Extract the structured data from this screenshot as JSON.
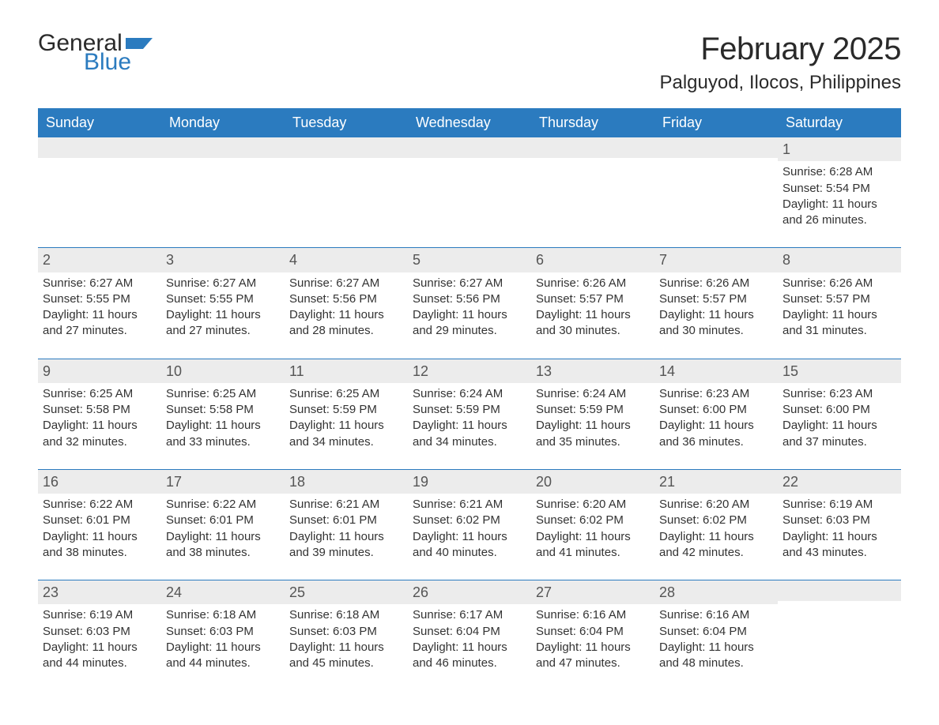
{
  "logo": {
    "text1": "General",
    "text2": "Blue",
    "flag_color": "#2b7bbf"
  },
  "title": "February 2025",
  "location": "Palguyod, Ilocos, Philippines",
  "colors": {
    "header_bg": "#2b7bbf",
    "header_text": "#ffffff",
    "daynum_bg": "#ececec",
    "daynum_text": "#555555",
    "body_text": "#333333",
    "rule": "#2b7bbf"
  },
  "daysOfWeek": [
    "Sunday",
    "Monday",
    "Tuesday",
    "Wednesday",
    "Thursday",
    "Friday",
    "Saturday"
  ],
  "weeks": [
    [
      {
        "n": "",
        "sunrise": "",
        "sunset": "",
        "daylight": ""
      },
      {
        "n": "",
        "sunrise": "",
        "sunset": "",
        "daylight": ""
      },
      {
        "n": "",
        "sunrise": "",
        "sunset": "",
        "daylight": ""
      },
      {
        "n": "",
        "sunrise": "",
        "sunset": "",
        "daylight": ""
      },
      {
        "n": "",
        "sunrise": "",
        "sunset": "",
        "daylight": ""
      },
      {
        "n": "",
        "sunrise": "",
        "sunset": "",
        "daylight": ""
      },
      {
        "n": "1",
        "sunrise": "Sunrise: 6:28 AM",
        "sunset": "Sunset: 5:54 PM",
        "daylight": "Daylight: 11 hours and 26 minutes."
      }
    ],
    [
      {
        "n": "2",
        "sunrise": "Sunrise: 6:27 AM",
        "sunset": "Sunset: 5:55 PM",
        "daylight": "Daylight: 11 hours and 27 minutes."
      },
      {
        "n": "3",
        "sunrise": "Sunrise: 6:27 AM",
        "sunset": "Sunset: 5:55 PM",
        "daylight": "Daylight: 11 hours and 27 minutes."
      },
      {
        "n": "4",
        "sunrise": "Sunrise: 6:27 AM",
        "sunset": "Sunset: 5:56 PM",
        "daylight": "Daylight: 11 hours and 28 minutes."
      },
      {
        "n": "5",
        "sunrise": "Sunrise: 6:27 AM",
        "sunset": "Sunset: 5:56 PM",
        "daylight": "Daylight: 11 hours and 29 minutes."
      },
      {
        "n": "6",
        "sunrise": "Sunrise: 6:26 AM",
        "sunset": "Sunset: 5:57 PM",
        "daylight": "Daylight: 11 hours and 30 minutes."
      },
      {
        "n": "7",
        "sunrise": "Sunrise: 6:26 AM",
        "sunset": "Sunset: 5:57 PM",
        "daylight": "Daylight: 11 hours and 30 minutes."
      },
      {
        "n": "8",
        "sunrise": "Sunrise: 6:26 AM",
        "sunset": "Sunset: 5:57 PM",
        "daylight": "Daylight: 11 hours and 31 minutes."
      }
    ],
    [
      {
        "n": "9",
        "sunrise": "Sunrise: 6:25 AM",
        "sunset": "Sunset: 5:58 PM",
        "daylight": "Daylight: 11 hours and 32 minutes."
      },
      {
        "n": "10",
        "sunrise": "Sunrise: 6:25 AM",
        "sunset": "Sunset: 5:58 PM",
        "daylight": "Daylight: 11 hours and 33 minutes."
      },
      {
        "n": "11",
        "sunrise": "Sunrise: 6:25 AM",
        "sunset": "Sunset: 5:59 PM",
        "daylight": "Daylight: 11 hours and 34 minutes."
      },
      {
        "n": "12",
        "sunrise": "Sunrise: 6:24 AM",
        "sunset": "Sunset: 5:59 PM",
        "daylight": "Daylight: 11 hours and 34 minutes."
      },
      {
        "n": "13",
        "sunrise": "Sunrise: 6:24 AM",
        "sunset": "Sunset: 5:59 PM",
        "daylight": "Daylight: 11 hours and 35 minutes."
      },
      {
        "n": "14",
        "sunrise": "Sunrise: 6:23 AM",
        "sunset": "Sunset: 6:00 PM",
        "daylight": "Daylight: 11 hours and 36 minutes."
      },
      {
        "n": "15",
        "sunrise": "Sunrise: 6:23 AM",
        "sunset": "Sunset: 6:00 PM",
        "daylight": "Daylight: 11 hours and 37 minutes."
      }
    ],
    [
      {
        "n": "16",
        "sunrise": "Sunrise: 6:22 AM",
        "sunset": "Sunset: 6:01 PM",
        "daylight": "Daylight: 11 hours and 38 minutes."
      },
      {
        "n": "17",
        "sunrise": "Sunrise: 6:22 AM",
        "sunset": "Sunset: 6:01 PM",
        "daylight": "Daylight: 11 hours and 38 minutes."
      },
      {
        "n": "18",
        "sunrise": "Sunrise: 6:21 AM",
        "sunset": "Sunset: 6:01 PM",
        "daylight": "Daylight: 11 hours and 39 minutes."
      },
      {
        "n": "19",
        "sunrise": "Sunrise: 6:21 AM",
        "sunset": "Sunset: 6:02 PM",
        "daylight": "Daylight: 11 hours and 40 minutes."
      },
      {
        "n": "20",
        "sunrise": "Sunrise: 6:20 AM",
        "sunset": "Sunset: 6:02 PM",
        "daylight": "Daylight: 11 hours and 41 minutes."
      },
      {
        "n": "21",
        "sunrise": "Sunrise: 6:20 AM",
        "sunset": "Sunset: 6:02 PM",
        "daylight": "Daylight: 11 hours and 42 minutes."
      },
      {
        "n": "22",
        "sunrise": "Sunrise: 6:19 AM",
        "sunset": "Sunset: 6:03 PM",
        "daylight": "Daylight: 11 hours and 43 minutes."
      }
    ],
    [
      {
        "n": "23",
        "sunrise": "Sunrise: 6:19 AM",
        "sunset": "Sunset: 6:03 PM",
        "daylight": "Daylight: 11 hours and 44 minutes."
      },
      {
        "n": "24",
        "sunrise": "Sunrise: 6:18 AM",
        "sunset": "Sunset: 6:03 PM",
        "daylight": "Daylight: 11 hours and 44 minutes."
      },
      {
        "n": "25",
        "sunrise": "Sunrise: 6:18 AM",
        "sunset": "Sunset: 6:03 PM",
        "daylight": "Daylight: 11 hours and 45 minutes."
      },
      {
        "n": "26",
        "sunrise": "Sunrise: 6:17 AM",
        "sunset": "Sunset: 6:04 PM",
        "daylight": "Daylight: 11 hours and 46 minutes."
      },
      {
        "n": "27",
        "sunrise": "Sunrise: 6:16 AM",
        "sunset": "Sunset: 6:04 PM",
        "daylight": "Daylight: 11 hours and 47 minutes."
      },
      {
        "n": "28",
        "sunrise": "Sunrise: 6:16 AM",
        "sunset": "Sunset: 6:04 PM",
        "daylight": "Daylight: 11 hours and 48 minutes."
      },
      {
        "n": "",
        "sunrise": "",
        "sunset": "",
        "daylight": ""
      }
    ]
  ]
}
